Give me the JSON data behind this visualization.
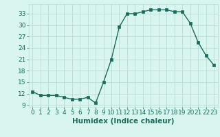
{
  "x": [
    0,
    1,
    2,
    3,
    4,
    5,
    6,
    7,
    8,
    9,
    10,
    11,
    12,
    13,
    14,
    15,
    16,
    17,
    18,
    19,
    20,
    21,
    22,
    23
  ],
  "y": [
    12.5,
    11.5,
    11.5,
    11.5,
    11.0,
    10.5,
    10.5,
    11.0,
    9.5,
    15.0,
    21.0,
    29.5,
    33.0,
    33.0,
    33.5,
    34.0,
    34.0,
    34.0,
    33.5,
    33.5,
    30.5,
    25.5,
    22.0,
    19.5
  ],
  "xlim": [
    -0.5,
    23.5
  ],
  "ylim": [
    8.5,
    35.5
  ],
  "yticks": [
    9,
    12,
    15,
    18,
    21,
    24,
    27,
    30,
    33
  ],
  "xticks": [
    0,
    1,
    2,
    3,
    4,
    5,
    6,
    7,
    8,
    9,
    10,
    11,
    12,
    13,
    14,
    15,
    16,
    17,
    18,
    19,
    20,
    21,
    22,
    23
  ],
  "xlabel": "Humidex (Indice chaleur)",
  "line_color": "#1a6b5a",
  "marker": "s",
  "marker_size": 2.5,
  "bg_color": "#d8f5f0",
  "grid_color": "#b8ddd8",
  "tick_color": "#1a6b5a",
  "tick_label_fontsize": 6.5,
  "xlabel_fontsize": 7.5
}
